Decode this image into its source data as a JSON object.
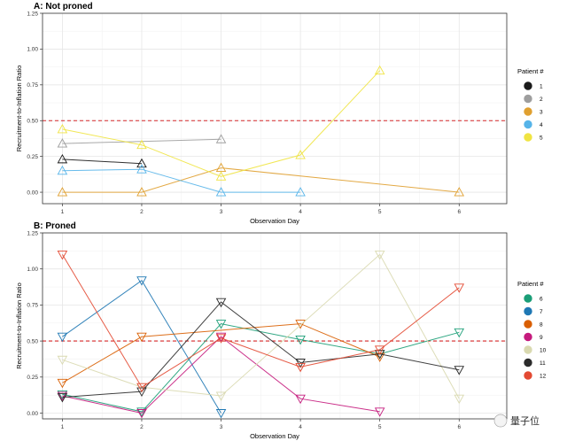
{
  "watermark": {
    "text": "量子位"
  },
  "chart_data": [
    {
      "type": "line",
      "title": "A: Not proned",
      "xlabel": "Observation Day",
      "ylabel": "Recruitment-to-Inflation Ratio",
      "xlim": [
        0.75,
        6.6
      ],
      "ylim": [
        -0.08,
        1.25
      ],
      "xticks": [
        1,
        2,
        3,
        4,
        5,
        6
      ],
      "yticks": [
        0.0,
        0.25,
        0.5,
        0.75,
        1.0,
        1.25
      ],
      "ytick_labels": [
        "0.00",
        "0.25",
        "0.50",
        "0.75",
        "1.00",
        "1.25"
      ],
      "reference_line": {
        "y": 0.5,
        "style": "dashed",
        "color": "#d62728"
      },
      "grid": true,
      "legend": {
        "title": "Patient #",
        "position": "right"
      },
      "series": [
        {
          "name": "1",
          "color": "#1a1a1a",
          "x": [
            1,
            2
          ],
          "y": [
            0.23,
            0.2
          ]
        },
        {
          "name": "2",
          "color": "#9e9e9e",
          "x": [
            1,
            3
          ],
          "y": [
            0.34,
            0.37
          ]
        },
        {
          "name": "3",
          "color": "#e0a030",
          "x": [
            1,
            2,
            3,
            6
          ],
          "y": [
            0.0,
            0.0,
            0.17,
            0.0
          ]
        },
        {
          "name": "4",
          "color": "#56b4e9",
          "x": [
            1,
            2,
            3,
            4
          ],
          "y": [
            0.15,
            0.16,
            0.0,
            0.0
          ]
        },
        {
          "name": "5",
          "color": "#f0e442",
          "x": [
            1,
            2,
            3,
            4,
            5
          ],
          "y": [
            0.44,
            0.33,
            0.11,
            0.26,
            0.85
          ]
        }
      ]
    },
    {
      "type": "line",
      "title": "B: Proned",
      "xlabel": "Observation Day",
      "ylabel": "Recruitment-to-Inflation Ratio",
      "xlim": [
        0.75,
        6.6
      ],
      "ylim": [
        -0.04,
        1.25
      ],
      "xticks": [
        1,
        2,
        3,
        4,
        5,
        6
      ],
      "yticks": [
        0.0,
        0.25,
        0.5,
        0.75,
        1.0,
        1.25
      ],
      "ytick_labels": [
        "0.00",
        "0.25",
        "0.50",
        "0.75",
        "1.00",
        "1.25"
      ],
      "reference_line": {
        "y": 0.5,
        "style": "dashed",
        "color": "#d62728"
      },
      "grid": true,
      "legend": {
        "title": "Patient #",
        "position": "right"
      },
      "series": [
        {
          "name": "6",
          "color": "#1b9e77",
          "x": [
            1,
            2,
            3,
            4,
            5,
            6
          ],
          "y": [
            0.13,
            0.01,
            0.62,
            0.51,
            0.41,
            0.56
          ]
        },
        {
          "name": "7",
          "color": "#1f78b4",
          "x": [
            1,
            2,
            3
          ],
          "y": [
            0.53,
            0.92,
            0.0
          ]
        },
        {
          "name": "8",
          "color": "#d95f02",
          "x": [
            1,
            2,
            4,
            5
          ],
          "y": [
            0.21,
            0.53,
            0.62,
            0.39
          ]
        },
        {
          "name": "9",
          "color": "#c51b7d",
          "x": [
            1,
            2,
            3,
            4,
            5
          ],
          "y": [
            0.12,
            0.0,
            0.53,
            0.1,
            0.01
          ]
        },
        {
          "name": "10",
          "color": "#d9d9b0",
          "x": [
            1,
            2,
            3,
            5,
            6
          ],
          "y": [
            0.37,
            0.18,
            0.12,
            1.1,
            0.1
          ]
        },
        {
          "name": "11",
          "color": "#2b2b2b",
          "x": [
            1,
            2,
            3,
            4,
            5,
            6
          ],
          "y": [
            0.11,
            0.15,
            0.77,
            0.35,
            0.41,
            0.3
          ]
        },
        {
          "name": "12",
          "color": "#e34a33",
          "x": [
            1,
            2,
            3,
            4,
            5,
            6
          ],
          "y": [
            1.1,
            0.18,
            0.52,
            0.32,
            0.44,
            0.87
          ]
        }
      ]
    }
  ]
}
